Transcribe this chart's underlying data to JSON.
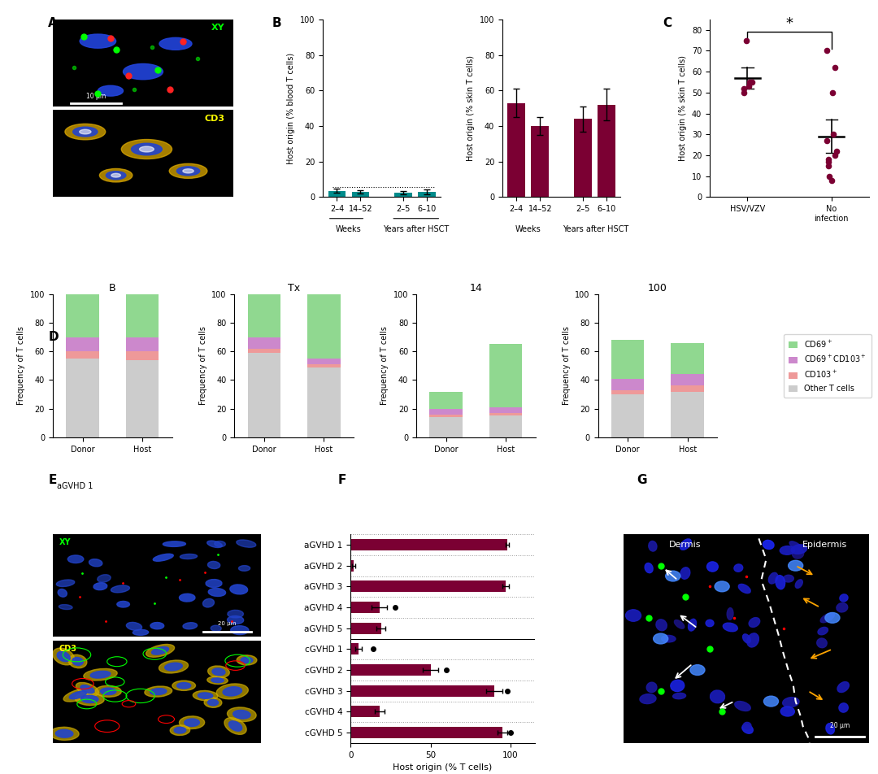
{
  "B_blood_values": [
    3.5,
    3.0,
    2.5,
    3.0
  ],
  "B_blood_errors": [
    1.2,
    0.8,
    0.8,
    1.2
  ],
  "B_skin_values": [
    53,
    40,
    44,
    52
  ],
  "B_skin_errors": [
    8,
    5,
    7,
    9
  ],
  "B_xtick_labels": [
    "2–4",
    "14–52",
    "2–5",
    "6–10"
  ],
  "B_bar_color_blood": "#008B8B",
  "B_bar_color_skin": "#7B0033",
  "C_hsv_points": [
    75,
    55,
    55,
    53,
    52,
    50
  ],
  "C_no_points": [
    70,
    62,
    50,
    30,
    27,
    22,
    20,
    18,
    17,
    15,
    10,
    8
  ],
  "C_hsv_mean": 57,
  "C_no_mean": 29,
  "C_hsv_sem": 5,
  "C_no_sem": 8,
  "C_dot_color": "#7B0033",
  "D_groups": [
    "B",
    "Tx",
    "14",
    "100"
  ],
  "D_donor_cd69": [
    30,
    30,
    12,
    27
  ],
  "D_donor_cd69cd103": [
    10,
    8,
    4,
    8
  ],
  "D_donor_cd103": [
    5,
    3,
    2,
    3
  ],
  "D_donor_other": [
    55,
    59,
    14,
    30
  ],
  "D_host_cd69": [
    30,
    45,
    44,
    22
  ],
  "D_host_cd69cd103": [
    10,
    4,
    4,
    8
  ],
  "D_host_cd103": [
    6,
    2,
    2,
    4
  ],
  "D_host_other": [
    54,
    49,
    15,
    32
  ],
  "D_color_cd69": "#90D890",
  "D_color_cd69cd103": "#CC88CC",
  "D_color_cd103": "#EE9999",
  "D_color_other": "#CCCCCC",
  "F_labels": [
    "aGVHD 1",
    "aGVHD 2",
    "aGVHD 3",
    "aGVHD 4",
    "aGVHD 5",
    "cGVHD 1",
    "cGVHD 2",
    "cGVHD 3",
    "cGVHD 4",
    "cGVHD 5"
  ],
  "F_values": [
    98,
    2,
    97,
    18,
    19,
    5,
    50,
    90,
    18,
    95
  ],
  "F_errors": [
    1,
    1,
    2,
    5,
    3,
    2,
    5,
    5,
    3,
    3
  ],
  "F_dots": [
    null,
    null,
    null,
    28,
    null,
    14,
    60,
    98,
    null,
    100
  ],
  "F_bar_color": "#7B0033"
}
